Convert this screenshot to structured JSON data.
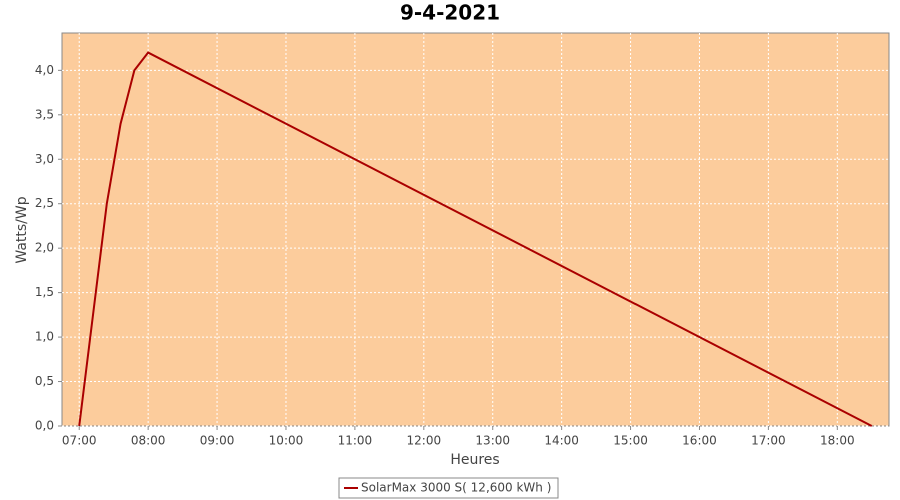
{
  "chart_data": {
    "type": "line",
    "title": "9-4-2021",
    "x_label": "Heures",
    "y_label": "Watts/Wp",
    "x": [
      7.0,
      7.4,
      7.6,
      7.8,
      8.0,
      18.5
    ],
    "series": [
      {
        "name": "SolarMax 3000 S( 12,600 kWh )",
        "color": "#aa0000",
        "values": [
          0,
          2.5,
          3.4,
          4.0,
          4.2,
          0
        ]
      }
    ],
    "xlim": [
      6.75,
      18.75
    ],
    "xticks": [
      {
        "value": 7,
        "label": "07:00"
      },
      {
        "value": 8,
        "label": "08:00"
      },
      {
        "value": 9,
        "label": "09:00"
      },
      {
        "value": 10,
        "label": "10:00"
      },
      {
        "value": 11,
        "label": "11:00"
      },
      {
        "value": 12,
        "label": "12:00"
      },
      {
        "value": 13,
        "label": "13:00"
      },
      {
        "value": 14,
        "label": "14:00"
      },
      {
        "value": 15,
        "label": "15:00"
      },
      {
        "value": 16,
        "label": "16:00"
      },
      {
        "value": 17,
        "label": "17:00"
      },
      {
        "value": 18,
        "label": "18:00"
      }
    ],
    "ylim": [
      0,
      4.42
    ],
    "yticks": [
      {
        "value": 0,
        "label": "0,0"
      },
      {
        "value": 0.5,
        "label": "0,5"
      },
      {
        "value": 1,
        "label": "1,0"
      },
      {
        "value": 1.5,
        "label": "1,5"
      },
      {
        "value": 2,
        "label": "2,0"
      },
      {
        "value": 2.5,
        "label": "2,5"
      },
      {
        "value": 3,
        "label": "3,0"
      },
      {
        "value": 3.5,
        "label": "3,5"
      },
      {
        "value": 4,
        "label": "4,0"
      }
    ],
    "grid": true,
    "plot_background": "#fccc9c",
    "legend": "bottom"
  }
}
